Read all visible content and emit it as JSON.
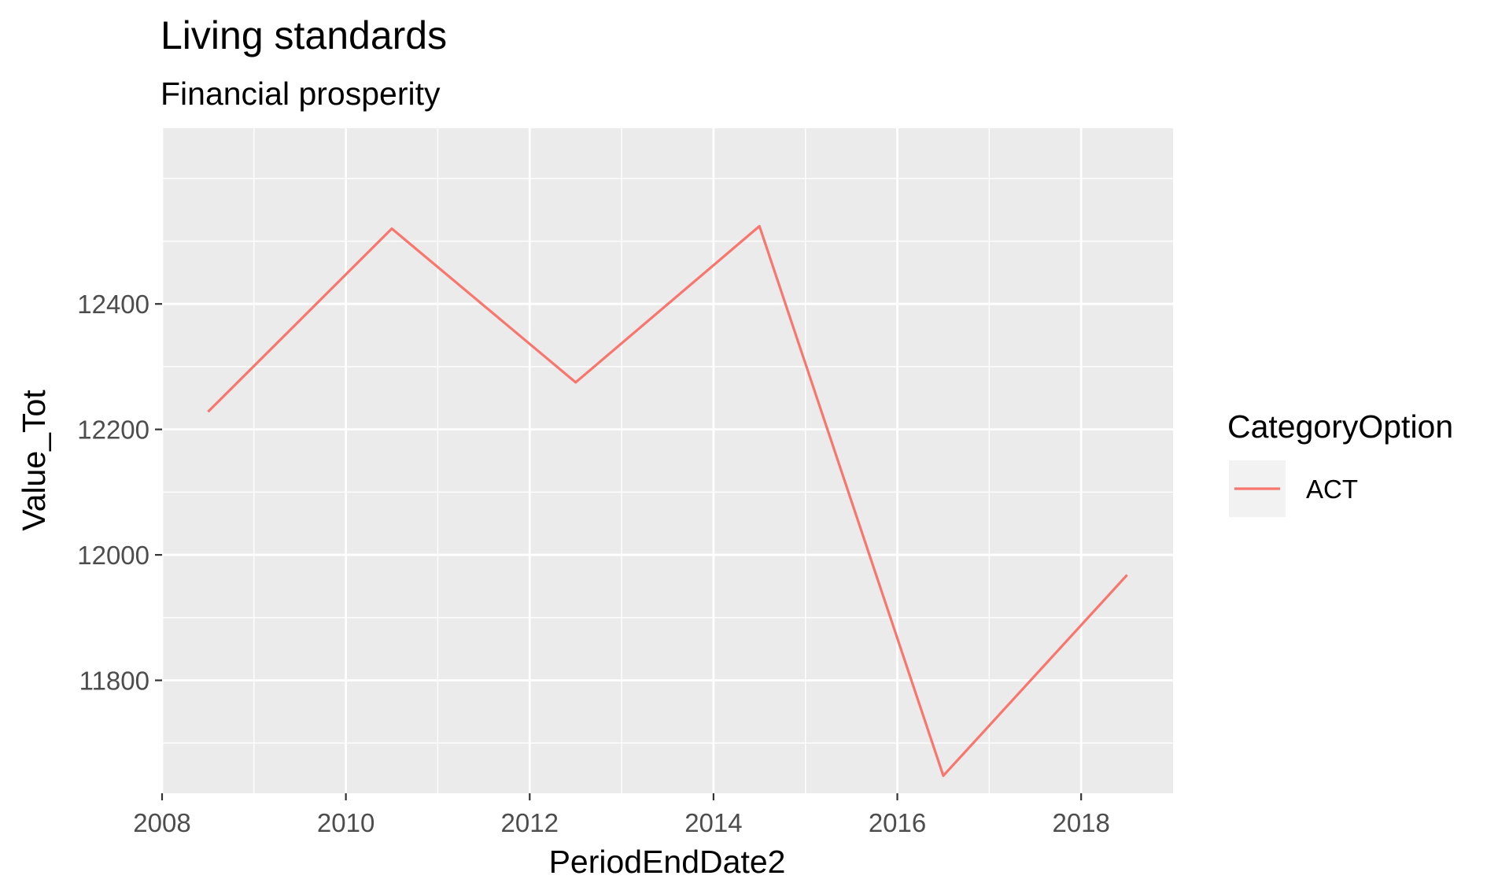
{
  "chart_data": {
    "type": "line",
    "title": "Living standards",
    "subtitle": "Financial prosperity",
    "xlabel": "PeriodEndDate2",
    "ylabel": "Value_Tot",
    "xlim": [
      2008,
      2019
    ],
    "ylim": [
      11620,
      12680
    ],
    "x_ticks": [
      2008,
      2010,
      2012,
      2014,
      2016,
      2018
    ],
    "y_ticks": [
      11800,
      12000,
      12200,
      12400
    ],
    "x_minor_ticks": [
      2009,
      2011,
      2013,
      2015,
      2017
    ],
    "y_minor_ticks": [
      11700,
      11900,
      12100,
      12300,
      12500,
      12600
    ],
    "grid": true,
    "legend": {
      "title": "CategoryOption",
      "position": "right"
    },
    "series": [
      {
        "name": "ACT",
        "color": "#f8766d",
        "x": [
          2008.5,
          2010.5,
          2012.5,
          2014.5,
          2016.5,
          2018.5
        ],
        "y": [
          12228,
          12520,
          12275,
          12524,
          11648,
          11968
        ]
      }
    ]
  }
}
